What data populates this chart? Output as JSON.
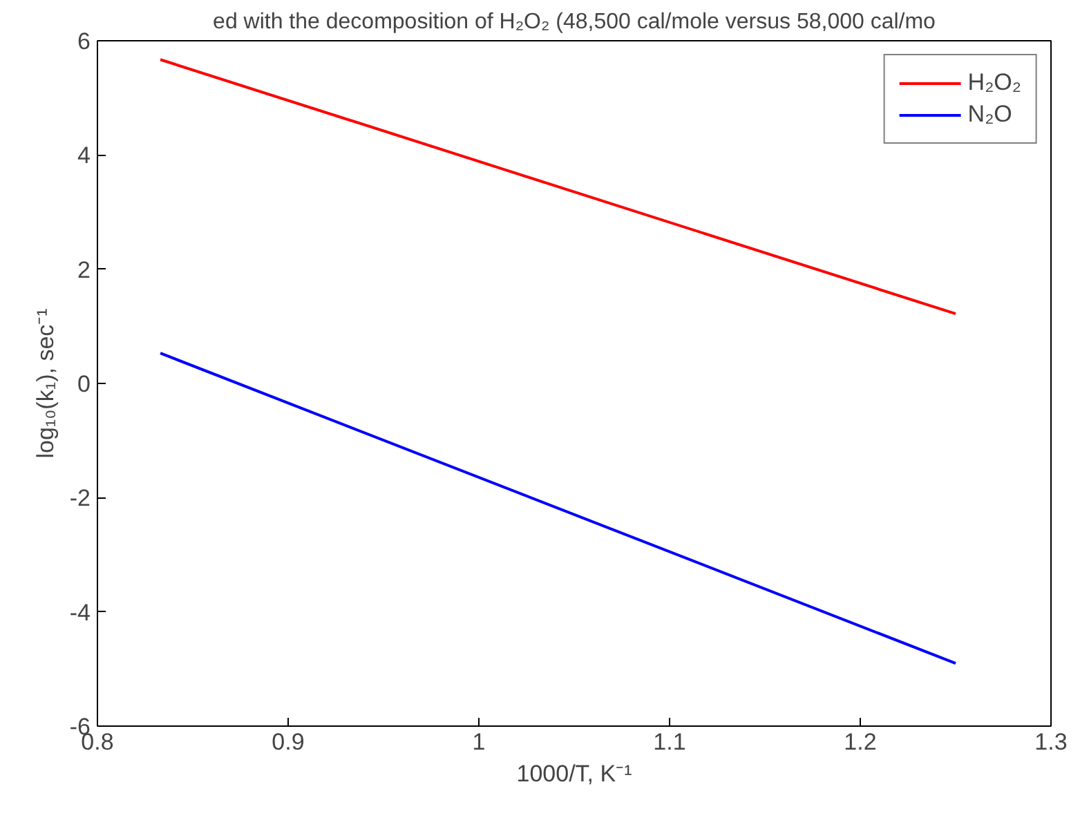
{
  "chart_data": {
    "type": "line",
    "xlabel": "1000/T, K⁻¹",
    "ylabel": "log₁₀(k₁), sec⁻¹",
    "annotations": [
      "ed with the decomposition of H₂O₂ (48,500 cal/mole versus 58,000 cal/mo"
    ],
    "x": [
      0.833,
      1.25
    ],
    "series": [
      {
        "name": "H₂O₂",
        "color": "#ff0000",
        "values": [
          5.67,
          1.22
        ]
      },
      {
        "name": "N₂O",
        "color": "#0000ff",
        "values": [
          0.53,
          -4.9
        ]
      }
    ],
    "xlim": [
      0.8,
      1.3
    ],
    "xticks": [
      0.8,
      0.9,
      1,
      1.1,
      1.2,
      1.3
    ],
    "ylim": [
      -6,
      6
    ],
    "yticks": [
      -6,
      -4,
      -2,
      0,
      2,
      4,
      6
    ],
    "grid": false,
    "legend": "top right",
    "line_style": "solid"
  }
}
